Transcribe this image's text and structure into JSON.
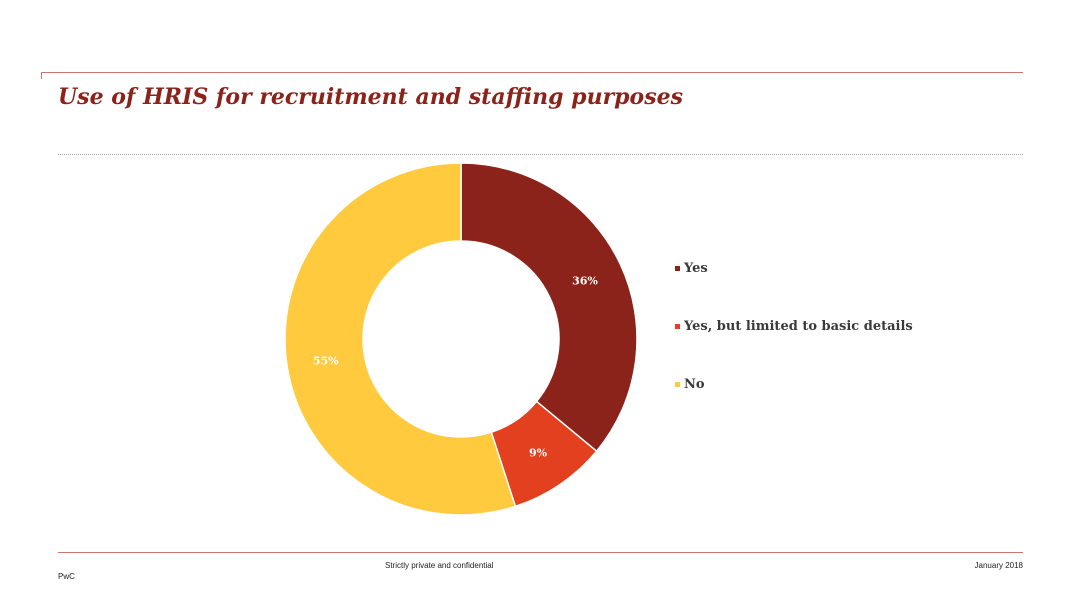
{
  "header": {
    "title": "Use of HRIS for recruitment and staffing purposes"
  },
  "chart_data": {
    "type": "pie",
    "style": "donut",
    "categories": [
      "Yes",
      "Yes, but limited to basic details",
      "No"
    ],
    "values": [
      36,
      9,
      55
    ],
    "data_labels": [
      "36%",
      "9%",
      "55%"
    ],
    "unit": "%",
    "colors": [
      "#8b231a",
      "#e2401f",
      "#ffca3d"
    ],
    "legend_position": "right",
    "start": "top",
    "direction": "clockwise"
  },
  "footer": {
    "confidentiality": "Strictly private and confidential",
    "date": "January 2018",
    "brand": "PwC"
  }
}
